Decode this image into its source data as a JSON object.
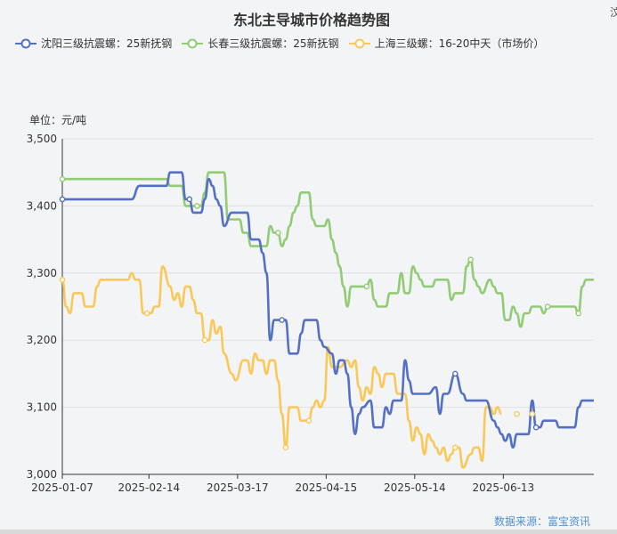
{
  "chart_data": {
    "type": "line",
    "title": "东北主导城市价格趋势图",
    "unit_label": "单位：元/吨",
    "source": "数据来源：富宝资讯",
    "corner_text": "汶",
    "ylim": [
      3000,
      3500
    ],
    "yticks": [
      "3,000",
      "3,100",
      "3,200",
      "3,300",
      "3,400",
      "3,500"
    ],
    "xticks": [
      "2025-01-07",
      "2025-02-14",
      "2025-03-17",
      "2025-04-15",
      "2025-05-14",
      "2025-06-13"
    ],
    "grid": true,
    "legend_position": "top",
    "series": [
      {
        "name": "沈阳三级抗震螺：25新抚钢",
        "color": "#5470c6",
        "points": [
          [
            0,
            3410
          ],
          [
            5,
            3410
          ],
          [
            10,
            3410
          ],
          [
            18,
            3410
          ],
          [
            20,
            3430
          ],
          [
            27,
            3430
          ],
          [
            28,
            3450
          ],
          [
            31,
            3450
          ],
          [
            32,
            3410
          ],
          [
            33,
            3410
          ],
          [
            34,
            3390
          ],
          [
            36,
            3390
          ],
          [
            37,
            3410
          ],
          [
            38,
            3440
          ],
          [
            39,
            3430
          ],
          [
            40,
            3410
          ],
          [
            41,
            3400
          ],
          [
            42,
            3370
          ],
          [
            44,
            3390
          ],
          [
            46,
            3390
          ],
          [
            48,
            3390
          ],
          [
            49,
            3350
          ],
          [
            51,
            3350
          ],
          [
            52,
            3330
          ],
          [
            53,
            3300
          ],
          [
            54,
            3200
          ],
          [
            55,
            3230
          ],
          [
            58,
            3230
          ],
          [
            59,
            3180
          ],
          [
            61,
            3180
          ],
          [
            62,
            3210
          ],
          [
            63,
            3230
          ],
          [
            66,
            3230
          ],
          [
            67,
            3200
          ],
          [
            68,
            3190
          ],
          [
            70,
            3180
          ],
          [
            71,
            3150
          ],
          [
            72,
            3170
          ],
          [
            73,
            3170
          ],
          [
            74,
            3150
          ],
          [
            75,
            3100
          ],
          [
            76,
            3060
          ],
          [
            77,
            3090
          ],
          [
            78,
            3100
          ],
          [
            80,
            3110
          ],
          [
            81,
            3070
          ],
          [
            83,
            3070
          ],
          [
            84,
            3100
          ],
          [
            85,
            3090
          ],
          [
            86,
            3110
          ],
          [
            88,
            3110
          ],
          [
            89,
            3170
          ],
          [
            90,
            3140
          ],
          [
            91,
            3120
          ],
          [
            95,
            3120
          ],
          [
            97,
            3130
          ],
          [
            98,
            3090
          ],
          [
            99,
            3120
          ],
          [
            100,
            3120
          ],
          [
            102,
            3150
          ],
          [
            104,
            3120
          ],
          [
            105,
            3110
          ],
          [
            110,
            3110
          ],
          [
            112,
            3080
          ],
          [
            113,
            3070
          ],
          [
            114,
            3060
          ],
          [
            115,
            3050
          ],
          [
            116,
            3060
          ],
          [
            117,
            3040
          ],
          [
            118,
            3060
          ],
          [
            121,
            3060
          ],
          [
            122,
            3110
          ],
          [
            123,
            3070
          ],
          [
            124,
            3070
          ],
          [
            125,
            3080
          ],
          [
            128,
            3080
          ],
          [
            129,
            3070
          ],
          [
            130,
            3070
          ],
          [
            133,
            3070
          ],
          [
            134,
            3100
          ],
          [
            135,
            3110
          ],
          [
            138,
            3110
          ]
        ]
      },
      {
        "name": "长春三级抗震螺：25新抚钢",
        "color": "#91cc75",
        "points": [
          [
            0,
            3440
          ],
          [
            10,
            3440
          ],
          [
            18,
            3440
          ],
          [
            22,
            3440
          ],
          [
            27,
            3440
          ],
          [
            28,
            3430
          ],
          [
            31,
            3430
          ],
          [
            32,
            3400
          ],
          [
            34,
            3400
          ],
          [
            36,
            3400
          ],
          [
            37,
            3420
          ],
          [
            38,
            3450
          ],
          [
            42,
            3450
          ],
          [
            43,
            3380
          ],
          [
            46,
            3380
          ],
          [
            47,
            3360
          ],
          [
            48,
            3360
          ],
          [
            49,
            3340
          ],
          [
            50,
            3340
          ],
          [
            51,
            3340
          ],
          [
            52,
            3340
          ],
          [
            53,
            3340
          ],
          [
            54,
            3370
          ],
          [
            55,
            3360
          ],
          [
            56,
            3360
          ],
          [
            57,
            3340
          ],
          [
            58,
            3350
          ],
          [
            59,
            3370
          ],
          [
            60,
            3390
          ],
          [
            61,
            3400
          ],
          [
            62,
            3420
          ],
          [
            64,
            3420
          ],
          [
            65,
            3380
          ],
          [
            66,
            3370
          ],
          [
            68,
            3370
          ],
          [
            69,
            3380
          ],
          [
            70,
            3350
          ],
          [
            71,
            3330
          ],
          [
            72,
            3310
          ],
          [
            73,
            3280
          ],
          [
            74,
            3250
          ],
          [
            75,
            3280
          ],
          [
            76,
            3280
          ],
          [
            77,
            3280
          ],
          [
            79,
            3280
          ],
          [
            80,
            3290
          ],
          [
            81,
            3260
          ],
          [
            82,
            3250
          ],
          [
            84,
            3250
          ],
          [
            85,
            3270
          ],
          [
            87,
            3270
          ],
          [
            88,
            3300
          ],
          [
            89,
            3270
          ],
          [
            90,
            3270
          ],
          [
            91,
            3310
          ],
          [
            92,
            3300
          ],
          [
            93,
            3290
          ],
          [
            94,
            3280
          ],
          [
            96,
            3280
          ],
          [
            97,
            3290
          ],
          [
            100,
            3290
          ],
          [
            101,
            3260
          ],
          [
            102,
            3270
          ],
          [
            104,
            3270
          ],
          [
            105,
            3310
          ],
          [
            106,
            3320
          ],
          [
            107,
            3290
          ],
          [
            108,
            3280
          ],
          [
            109,
            3270
          ],
          [
            111,
            3290
          ],
          [
            112,
            3280
          ],
          [
            113,
            3270
          ],
          [
            114,
            3270
          ],
          [
            115,
            3230
          ],
          [
            116,
            3230
          ],
          [
            117,
            3250
          ],
          [
            118,
            3240
          ],
          [
            119,
            3220
          ],
          [
            120,
            3240
          ],
          [
            121,
            3240
          ],
          [
            122,
            3250
          ],
          [
            124,
            3250
          ],
          [
            125,
            3240
          ],
          [
            126,
            3250
          ],
          [
            129,
            3250
          ],
          [
            131,
            3250
          ],
          [
            133,
            3250
          ],
          [
            134,
            3240
          ],
          [
            135,
            3280
          ],
          [
            136,
            3290
          ],
          [
            138,
            3290
          ]
        ]
      },
      {
        "name": "上海三级螺：16-20中天（市场价）",
        "color": "#fac858",
        "points": [
          [
            0,
            3290
          ],
          [
            1,
            3250
          ],
          [
            2,
            3240
          ],
          [
            3,
            3270
          ],
          [
            5,
            3270
          ],
          [
            6,
            3250
          ],
          [
            8,
            3250
          ],
          [
            9,
            3280
          ],
          [
            10,
            3290
          ],
          [
            17,
            3290
          ],
          [
            18,
            3300
          ],
          [
            19,
            3290
          ],
          [
            20,
            3290
          ],
          [
            21,
            3240
          ],
          [
            23,
            3240
          ],
          [
            24,
            3250
          ],
          [
            25,
            3250
          ],
          [
            26,
            3310
          ],
          [
            28,
            3280
          ],
          [
            29,
            3260
          ],
          [
            30,
            3270
          ],
          [
            31,
            3250
          ],
          [
            32,
            3280
          ],
          [
            33,
            3280
          ],
          [
            34,
            3260
          ],
          [
            35,
            3240
          ],
          [
            36,
            3240
          ],
          [
            37,
            3200
          ],
          [
            38,
            3200
          ],
          [
            39,
            3230
          ],
          [
            40,
            3210
          ],
          [
            41,
            3220
          ],
          [
            42,
            3180
          ],
          [
            44,
            3150
          ],
          [
            45,
            3140
          ],
          [
            47,
            3170
          ],
          [
            48,
            3170
          ],
          [
            49,
            3150
          ],
          [
            50,
            3180
          ],
          [
            51,
            3170
          ],
          [
            52,
            3170
          ],
          [
            53,
            3150
          ],
          [
            54,
            3170
          ],
          [
            55,
            3170
          ],
          [
            56,
            3140
          ],
          [
            57,
            3090
          ],
          [
            58,
            3040
          ],
          [
            59,
            3100
          ],
          [
            60,
            3100
          ],
          [
            61,
            3100
          ],
          [
            62,
            3080
          ],
          [
            64,
            3080
          ],
          [
            65,
            3100
          ],
          [
            66,
            3110
          ],
          [
            67,
            3100
          ],
          [
            68,
            3110
          ],
          [
            69,
            3190
          ],
          [
            70,
            3160
          ],
          [
            72,
            3160
          ],
          [
            74,
            3170
          ],
          [
            75,
            3160
          ],
          [
            76,
            3170
          ],
          [
            77,
            3130
          ],
          [
            78,
            3110
          ],
          [
            79,
            3130
          ],
          [
            80,
            3120
          ],
          [
            81,
            3160
          ],
          [
            82,
            3150
          ],
          [
            83,
            3130
          ],
          [
            84,
            3150
          ],
          [
            86,
            3150
          ],
          [
            87,
            3120
          ],
          [
            89,
            3120
          ],
          [
            90,
            3080
          ],
          [
            91,
            3050
          ],
          [
            92,
            3070
          ],
          [
            93,
            3060
          ],
          [
            94,
            3030
          ],
          [
            95,
            3060
          ],
          [
            96,
            3050
          ],
          [
            97,
            3040
          ],
          [
            98,
            3030
          ],
          [
            99,
            3040
          ],
          [
            100,
            3020
          ],
          [
            101,
            3030
          ],
          [
            102,
            3040
          ],
          [
            103,
            3040
          ],
          [
            104,
            3010
          ],
          [
            106,
            3030
          ],
          [
            107,
            3040
          ],
          [
            108,
            3040
          ],
          [
            109,
            3020
          ],
          [
            110,
            3100
          ],
          [
            111,
            3100
          ],
          [
            112,
            3090
          ],
          [
            113,
            3100
          ],
          [
            114,
            3090
          ]
        ]
      }
    ]
  }
}
